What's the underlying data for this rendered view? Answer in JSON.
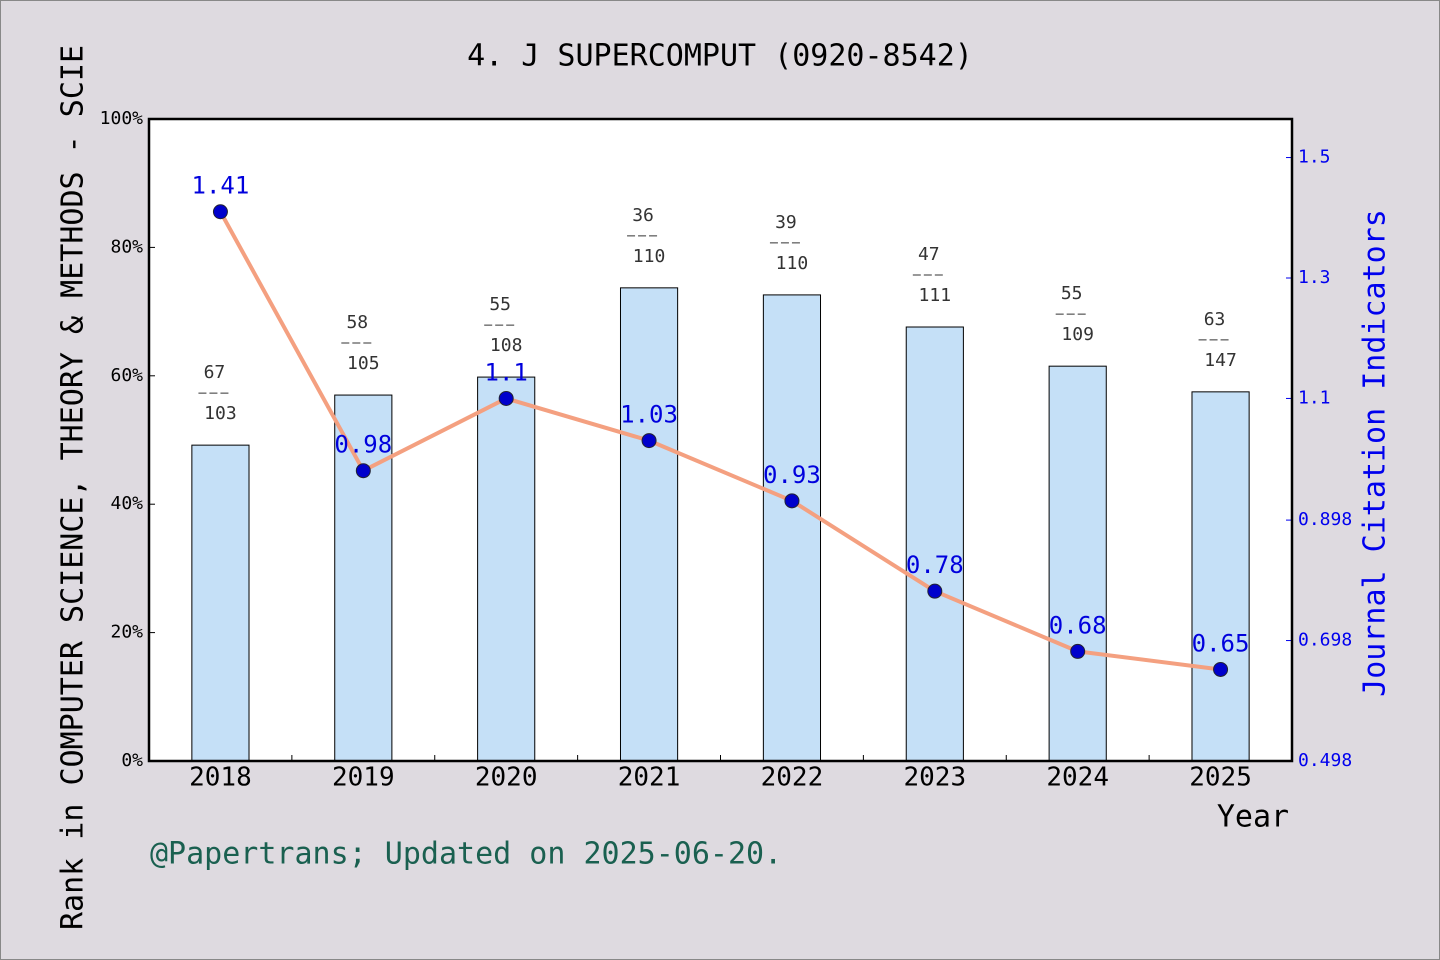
{
  "chart_data": {
    "type": "bar_line",
    "title": "4. J SUPERCOMPUT (0920-8542)",
    "y_label": "Rank in COMPUTER SCIENCE, THEORY & METHODS - SCIE",
    "y2_label": "Journal Citation Indicators",
    "x_label": "Year",
    "footnote": "@Papertrans; Updated on 2025-06-20.",
    "categories": [
      "2018",
      "2019",
      "2020",
      "2021",
      "2022",
      "2023",
      "2024",
      "2025"
    ],
    "series": [
      {
        "type": "bar",
        "color": "#c5e0f7",
        "values": [
          49.2,
          57.0,
          59.8,
          73.7,
          72.6,
          67.6,
          61.5,
          57.5
        ],
        "annotations": [
          [
            "67",
            "103"
          ],
          [
            "58",
            "105"
          ],
          [
            "55",
            "108"
          ],
          [
            "36",
            "110"
          ],
          [
            "39",
            "110"
          ],
          [
            "47",
            "111"
          ],
          [
            "55",
            "109"
          ],
          [
            "63",
            "147"
          ]
        ]
      },
      {
        "type": "line",
        "axis": "y2",
        "color": "#f4a080",
        "marker_color": "#0000cc",
        "label_color": "#0000dd",
        "values": [
          1.41,
          0.98,
          1.1,
          1.03,
          0.93,
          0.78,
          0.68,
          0.65
        ]
      }
    ],
    "ylim": [
      0,
      100
    ],
    "yticks": [
      {
        "value": 0,
        "label": "0%"
      },
      {
        "value": 20,
        "label": "20%"
      },
      {
        "value": 40,
        "label": "40%"
      },
      {
        "value": 60,
        "label": "60%"
      },
      {
        "value": 80,
        "label": "80%"
      },
      {
        "value": 100,
        "label": "100%"
      }
    ],
    "y2lim": [
      0.498,
      1.564
    ],
    "y2ticks": [
      0.498,
      0.698,
      0.898,
      1.1,
      1.3,
      1.5
    ],
    "y2_color": "#0000ee"
  }
}
